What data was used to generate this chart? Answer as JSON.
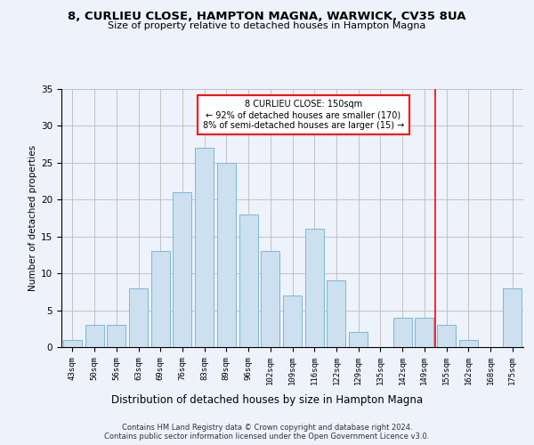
{
  "title1": "8, CURLIEU CLOSE, HAMPTON MAGNA, WARWICK, CV35 8UA",
  "title2": "Size of property relative to detached houses in Hampton Magna",
  "xlabel": "Distribution of detached houses by size in Hampton Magna",
  "ylabel": "Number of detached properties",
  "categories": [
    "43sqm",
    "50sqm",
    "56sqm",
    "63sqm",
    "69sqm",
    "76sqm",
    "83sqm",
    "89sqm",
    "96sqm",
    "102sqm",
    "109sqm",
    "116sqm",
    "122sqm",
    "129sqm",
    "135sqm",
    "142sqm",
    "149sqm",
    "155sqm",
    "162sqm",
    "168sqm",
    "175sqm"
  ],
  "values": [
    1,
    3,
    3,
    8,
    13,
    21,
    27,
    25,
    18,
    13,
    7,
    16,
    9,
    2,
    0,
    4,
    4,
    3,
    1,
    0,
    8
  ],
  "bar_color": "#cce0f0",
  "bar_edge_color": "#7ab8d9",
  "vline_x": 16.5,
  "vline_color": "red",
  "annotation_text": "8 CURLIEU CLOSE: 150sqm\n← 92% of detached houses are smaller (170)\n8% of semi-detached houses are larger (15) →",
  "annotation_box_color": "white",
  "annotation_box_edge": "red",
  "ylim": [
    0,
    35
  ],
  "yticks": [
    0,
    5,
    10,
    15,
    20,
    25,
    30,
    35
  ],
  "footer": "Contains HM Land Registry data © Crown copyright and database right 2024.\nContains public sector information licensed under the Open Government Licence v3.0.",
  "background_color": "#eef2fb",
  "grid_color": "#bbbbbb"
}
